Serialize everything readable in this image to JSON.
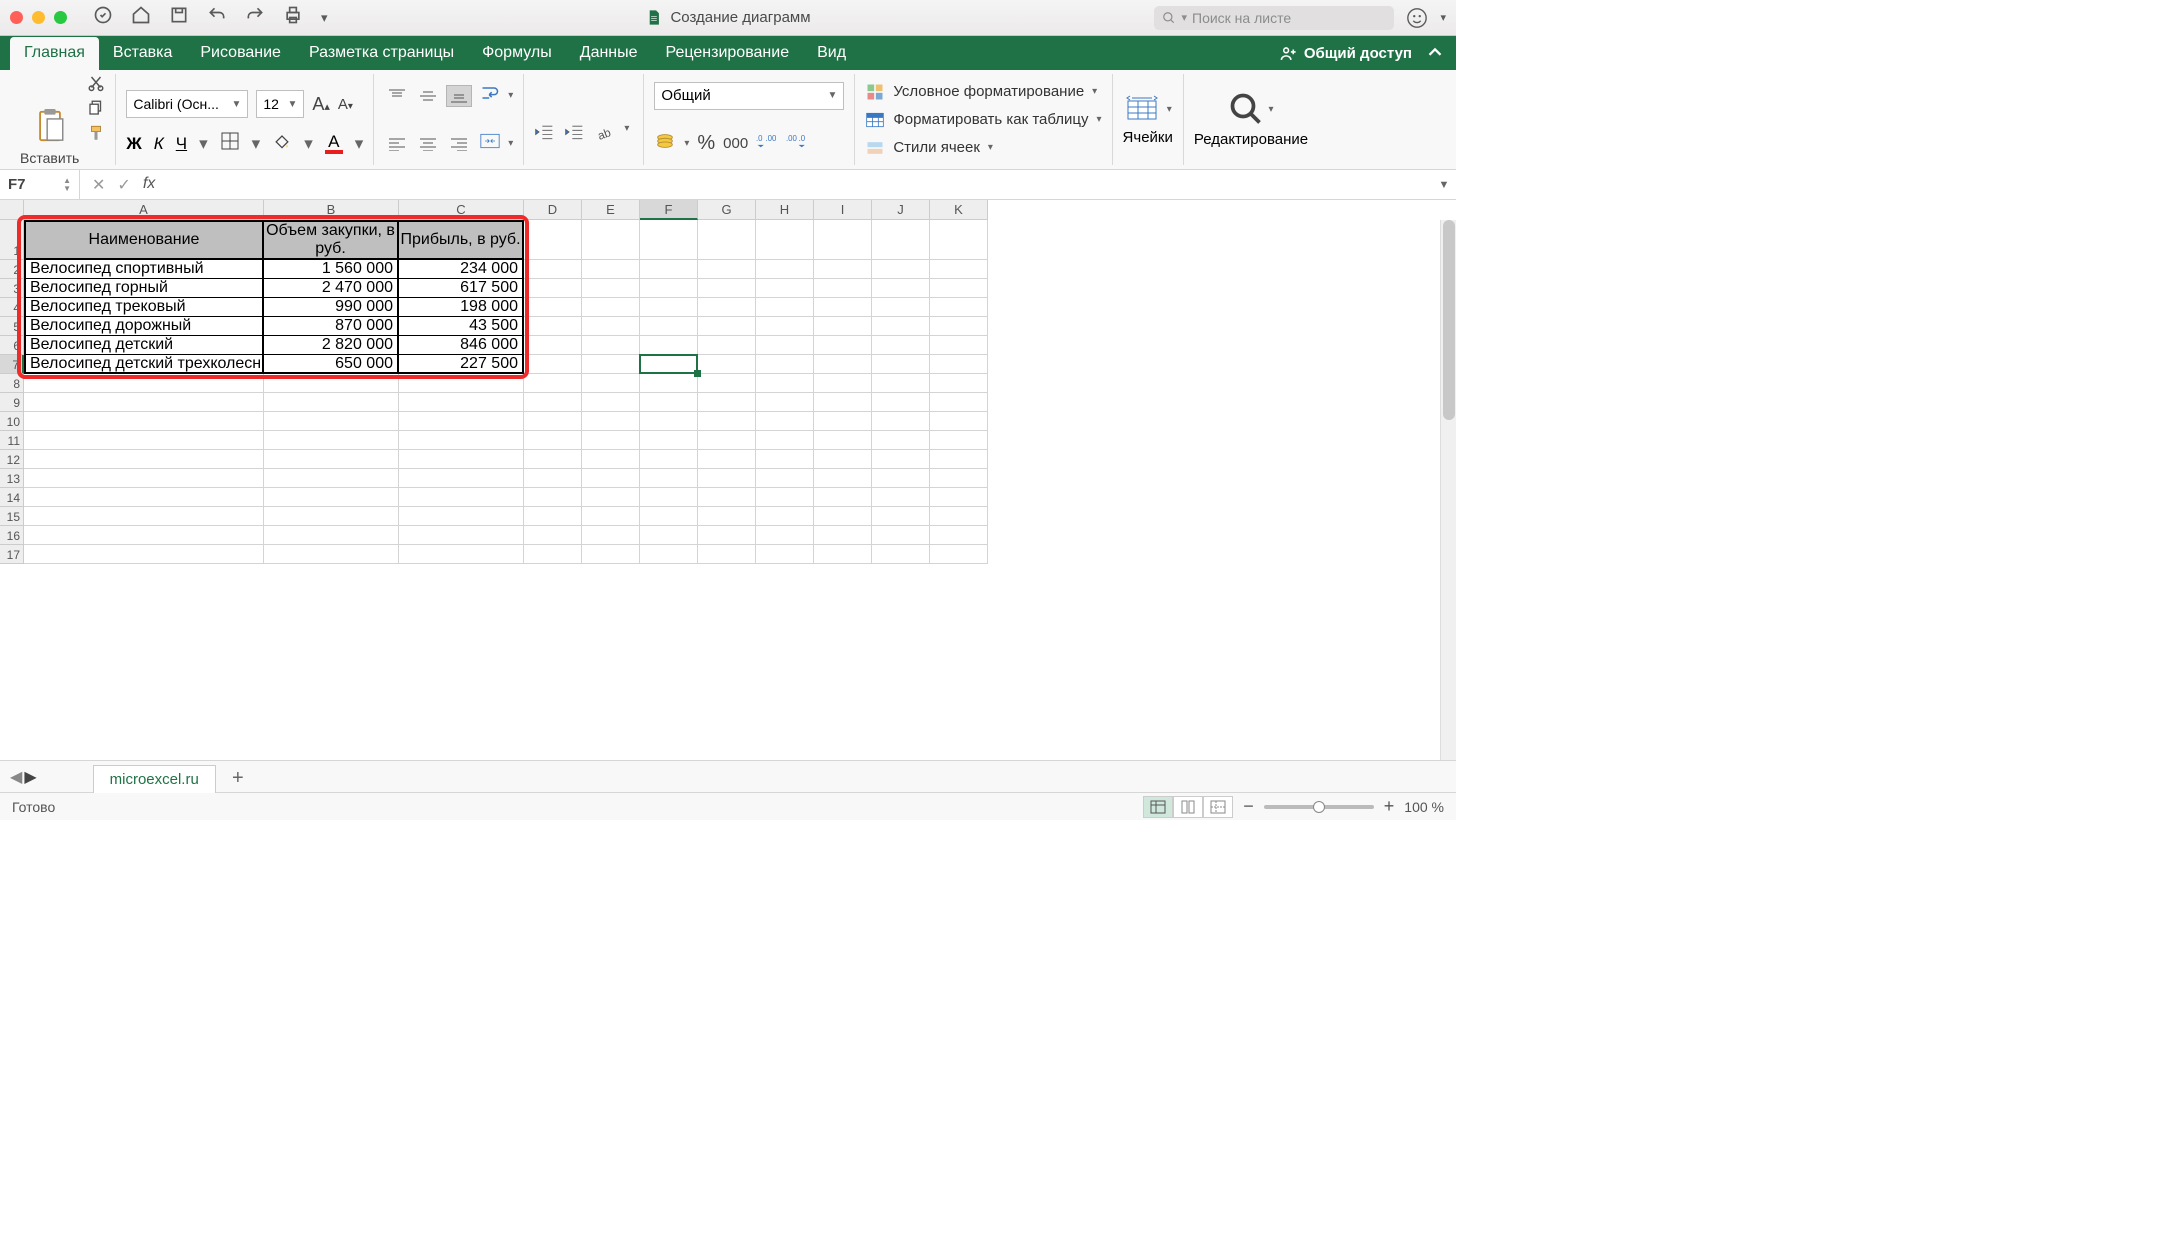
{
  "window": {
    "title": "Создание диаграмм",
    "search_placeholder": "Поиск на листе",
    "traffic_colors": [
      "#ff5f57",
      "#febc2e",
      "#28c840"
    ]
  },
  "tabs": {
    "items": [
      "Главная",
      "Вставка",
      "Рисование",
      "Разметка страницы",
      "Формулы",
      "Данные",
      "Рецензирование",
      "Вид"
    ],
    "active": 0,
    "share_label": "Общий доступ"
  },
  "ribbon": {
    "paste_label": "Вставить",
    "font_name": "Calibri (Осн...",
    "font_size": "12",
    "number_format": "Общий",
    "thousands": "000",
    "cond_fmt": "Условное форматирование",
    "as_table": "Форматировать как таблицу",
    "cell_styles": "Стили ячеек",
    "cells_label": "Ячейки",
    "editing_label": "Редактирование"
  },
  "name_box": "F7",
  "columns": {
    "letters": [
      "A",
      "B",
      "C",
      "D",
      "E",
      "F",
      "G",
      "H",
      "I",
      "J",
      "K"
    ],
    "widths": [
      240,
      135,
      125,
      58,
      58,
      58,
      58,
      58,
      58,
      58,
      58
    ]
  },
  "rows": {
    "count": 17,
    "heights": {
      "1": 40,
      "default": 19
    }
  },
  "selected": {
    "col": "F",
    "row": 7
  },
  "table": {
    "highlight_color": "#ef2a2a",
    "header_bg": "#c0bfbf",
    "headers": [
      "Наименование",
      "Объем закупки, в руб.",
      "Прибыль, в руб."
    ],
    "rows": [
      [
        "Велосипед спортивный",
        "1 560 000",
        "234 000"
      ],
      [
        "Велосипед горный",
        "2 470 000",
        "617 500"
      ],
      [
        "Велосипед трековый",
        "990 000",
        "198 000"
      ],
      [
        "Велосипед дорожный",
        "870 000",
        "43 500"
      ],
      [
        "Велосипед детский",
        "2 820 000",
        "846 000"
      ],
      [
        "Велосипед детский трехколесный",
        "650 000",
        "227 500"
      ]
    ]
  },
  "sheetbar": {
    "sheet_name": "microexcel.ru"
  },
  "statusbar": {
    "ready": "Готово",
    "zoom": "100 %",
    "zoom_pos": 0.5
  }
}
